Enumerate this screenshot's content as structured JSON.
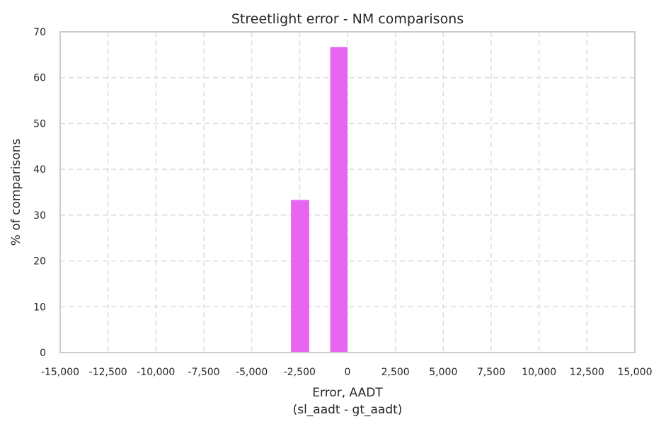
{
  "chart_data": {
    "type": "bar",
    "title": "Streetlight error - NM comparisons",
    "xlabel": "Error, AADT",
    "xlabel_sub": "(sl_aadt - gt_aadt)",
    "ylabel": "% of comparisons",
    "xlim": [
      -15000,
      15000
    ],
    "ylim": [
      0,
      70
    ],
    "x_ticks": [
      -15000,
      -12500,
      -10000,
      -7500,
      -5000,
      -2500,
      0,
      2500,
      5000,
      7500,
      10000,
      12500,
      15000
    ],
    "x_tick_labels": [
      "-15,000",
      "-12,500",
      "-10,000",
      "-7,500",
      "-5,000",
      "-2,500",
      "0",
      "2,500",
      "5,000",
      "7,500",
      "10,000",
      "12,500",
      "15,000"
    ],
    "y_ticks": [
      0,
      10,
      20,
      30,
      40,
      50,
      60,
      70
    ],
    "y_tick_labels": [
      "0",
      "10",
      "20",
      "30",
      "40",
      "50",
      "60",
      "70"
    ],
    "grid": true,
    "bar_color": "#e765f0",
    "bars": [
      {
        "x_start": -2950,
        "x_end": -2000,
        "value": 33.3
      },
      {
        "x_start": -900,
        "x_end": 0,
        "value": 66.7
      }
    ]
  }
}
